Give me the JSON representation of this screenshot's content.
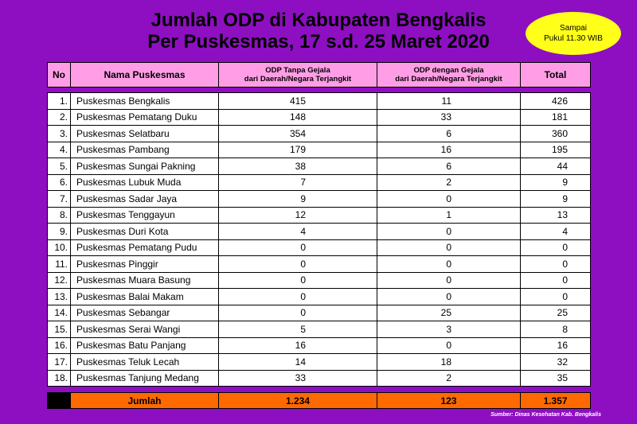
{
  "title": {
    "line1": "Jumlah ODP di Kabupaten Bengkalis",
    "line2": "Per Puskesmas, 17 s.d. 25 Maret 2020"
  },
  "badge": {
    "line1": "Sampai",
    "line2": "Pukul 11.30 WIB"
  },
  "table": {
    "headers": {
      "no": "No",
      "name": "Nama Puskesmas",
      "col3_line1": "ODP Tanpa Gejala",
      "col3_line2": "dari Daerah/Negara Terjangkit",
      "col4_line1": "ODP dengan Gejala",
      "col4_line2": "dari Daerah/Negara Terjangkit",
      "total": "Total"
    },
    "rows": [
      {
        "no": "1.",
        "name": "Puskesmas Bengkalis",
        "tanpa": "415",
        "dengan": "11",
        "total": "426"
      },
      {
        "no": "2.",
        "name": "Puskesmas Pematang Duku",
        "tanpa": "148",
        "dengan": "33",
        "total": "181"
      },
      {
        "no": "3.",
        "name": "Puskesmas Selatbaru",
        "tanpa": "354",
        "dengan": "6",
        "total": "360"
      },
      {
        "no": "4.",
        "name": "Puskesmas Pambang",
        "tanpa": "179",
        "dengan": "16",
        "total": "195"
      },
      {
        "no": "5.",
        "name": "Puskesmas Sungai Pakning",
        "tanpa": "38",
        "dengan": "6",
        "total": "44"
      },
      {
        "no": "6.",
        "name": "Puskesmas Lubuk Muda",
        "tanpa": "7",
        "dengan": "2",
        "total": "9"
      },
      {
        "no": "7.",
        "name": "Puskesmas Sadar Jaya",
        "tanpa": "9",
        "dengan": "0",
        "total": "9"
      },
      {
        "no": "8.",
        "name": "Puskesmas Tenggayun",
        "tanpa": "12",
        "dengan": "1",
        "total": "13"
      },
      {
        "no": "9.",
        "name": "Puskesmas Duri Kota",
        "tanpa": "4",
        "dengan": "0",
        "total": "4"
      },
      {
        "no": "10.",
        "name": "Puskesmas Pematang Pudu",
        "tanpa": "0",
        "dengan": "0",
        "total": "0"
      },
      {
        "no": "11.",
        "name": "Puskesmas Pinggir",
        "tanpa": "0",
        "dengan": "0",
        "total": "0"
      },
      {
        "no": "12.",
        "name": "Puskesmas Muara Basung",
        "tanpa": "0",
        "dengan": "0",
        "total": "0"
      },
      {
        "no": "13.",
        "name": "Puskesmas Balai Makam",
        "tanpa": "0",
        "dengan": "0",
        "total": "0"
      },
      {
        "no": "14.",
        "name": "Puskesmas Sebangar",
        "tanpa": "0",
        "dengan": "25",
        "total": "25"
      },
      {
        "no": "15.",
        "name": "Puskesmas Serai Wangi",
        "tanpa": "5",
        "dengan": "3",
        "total": "8"
      },
      {
        "no": "16.",
        "name": "Puskesmas Batu Panjang",
        "tanpa": "16",
        "dengan": "0",
        "total": "16"
      },
      {
        "no": "17.",
        "name": "Puskesmas Teluk Lecah",
        "tanpa": "14",
        "dengan": "18",
        "total": "32"
      },
      {
        "no": "18.",
        "name": "Puskesmas Tanjung Medang",
        "tanpa": "33",
        "dengan": "2",
        "total": "35"
      }
    ],
    "totals": {
      "label": "Jumlah",
      "tanpa": "1.234",
      "dengan": "123",
      "total": "1.357"
    }
  },
  "source": "Sumber: Dinas Kesehatan Kab. Bengkalis",
  "colors": {
    "background": "#8e0fc1",
    "header": "#ff9ee6",
    "totals_row": "#ff6a00",
    "badge": "#ffff1a"
  }
}
